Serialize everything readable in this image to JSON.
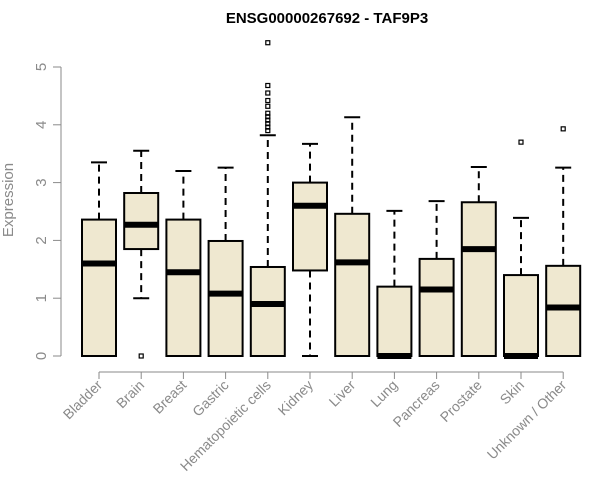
{
  "chart_data": {
    "type": "boxplot",
    "title": "ENSG00000267692 - TAF9P3",
    "ylabel": "Expression",
    "ylim": [
      0,
      5
    ],
    "yticks": [
      0,
      1,
      2,
      3,
      4,
      5
    ],
    "categories": [
      "Bladder",
      "Brain",
      "Breast",
      "Gastric",
      "Hematopoietic cells",
      "Kidney",
      "Liver",
      "Lung",
      "Pancreas",
      "Prostate",
      "Skin",
      "Unknown / Other"
    ],
    "boxes": [
      {
        "category": "Bladder",
        "whisker_low": 0,
        "q1": 0,
        "median": 1.6,
        "q3": 2.36,
        "whisker_high": 3.35,
        "outliers": []
      },
      {
        "category": "Brain",
        "whisker_low": 1.0,
        "q1": 1.85,
        "median": 2.27,
        "q3": 2.82,
        "whisker_high": 3.55,
        "outliers": [
          0.0
        ]
      },
      {
        "category": "Breast",
        "whisker_low": 0,
        "q1": 0,
        "median": 1.45,
        "q3": 2.36,
        "whisker_high": 3.2,
        "outliers": []
      },
      {
        "category": "Gastric",
        "whisker_low": 0,
        "q1": 0,
        "median": 1.08,
        "q3": 1.99,
        "whisker_high": 3.26,
        "outliers": []
      },
      {
        "category": "Hematopoietic cells",
        "whisker_low": 0,
        "q1": 0,
        "median": 0.9,
        "q3": 1.54,
        "whisker_high": 3.82,
        "outliers": [
          3.9,
          3.96,
          4.02,
          4.08,
          4.14,
          4.2,
          4.32,
          4.42,
          4.55,
          4.68,
          5.42
        ]
      },
      {
        "category": "Kidney",
        "whisker_low": 0,
        "q1": 1.48,
        "median": 2.6,
        "q3": 3.0,
        "whisker_high": 3.67,
        "outliers": []
      },
      {
        "category": "Liver",
        "whisker_low": 0,
        "q1": 0,
        "median": 1.62,
        "q3": 2.46,
        "whisker_high": 4.13,
        "outliers": []
      },
      {
        "category": "Lung",
        "whisker_low": 0,
        "q1": 0,
        "median": 0.0,
        "q3": 1.2,
        "whisker_high": 2.51,
        "outliers": []
      },
      {
        "category": "Pancreas",
        "whisker_low": 0,
        "q1": 0,
        "median": 1.15,
        "q3": 1.68,
        "whisker_high": 2.68,
        "outliers": []
      },
      {
        "category": "Prostate",
        "whisker_low": 0,
        "q1": 0,
        "median": 1.85,
        "q3": 2.66,
        "whisker_high": 3.27,
        "outliers": []
      },
      {
        "category": "Skin",
        "whisker_low": 0,
        "q1": 0,
        "median": 0.0,
        "q3": 1.4,
        "whisker_high": 2.39,
        "outliers": [
          3.7
        ]
      },
      {
        "category": "Unknown / Other",
        "whisker_low": 0,
        "q1": 0,
        "median": 0.84,
        "q3": 1.56,
        "whisker_high": 3.26,
        "outliers": [
          3.93
        ]
      }
    ],
    "grid": false,
    "colors": {
      "box_fill": "#efe8d0",
      "box_stroke": "#000000",
      "axis": "#8a8a8a"
    }
  }
}
